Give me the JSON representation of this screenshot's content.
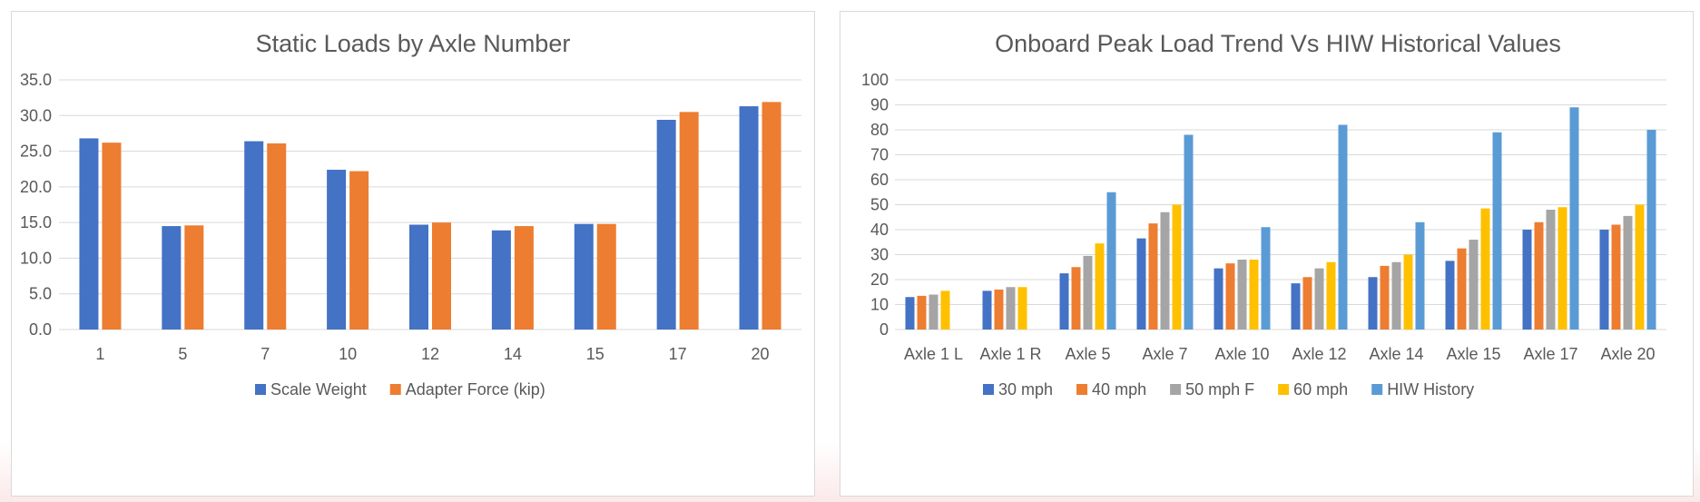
{
  "chart_data": [
    {
      "type": "bar",
      "title": "Static Loads by Axle Number",
      "categories": [
        "1",
        "5",
        "7",
        "10",
        "12",
        "14",
        "15",
        "17",
        "20"
      ],
      "ylim": [
        0,
        35
      ],
      "ytick_step": 5,
      "ytick_labels": [
        "0.0",
        "5.0",
        "10.0",
        "15.0",
        "20.0",
        "25.0",
        "30.0",
        "35.0"
      ],
      "xlabel": "",
      "ylabel": "",
      "grid": true,
      "legend_position": "bottom",
      "series": [
        {
          "name": "Scale Weight",
          "color": "#4472C4",
          "values": [
            26.8,
            14.5,
            26.4,
            22.4,
            14.7,
            13.9,
            14.8,
            29.4,
            31.3
          ]
        },
        {
          "name": "Adapter Force (kip)",
          "color": "#ED7D31",
          "values": [
            26.2,
            14.6,
            26.1,
            22.2,
            15.0,
            14.5,
            14.8,
            30.5,
            31.9
          ]
        }
      ]
    },
    {
      "type": "bar",
      "title": "Onboard Peak Load Trend Vs HIW Historical Values",
      "categories": [
        "Axle 1 L",
        "Axle 1 R",
        "Axle 5",
        "Axle 7",
        "Axle 10",
        "Axle 12",
        "Axle 14",
        "Axle 15",
        "Axle 17",
        "Axle 20"
      ],
      "ylim": [
        0,
        100
      ],
      "ytick_step": 10,
      "ytick_labels": [
        "0",
        "10",
        "20",
        "30",
        "40",
        "50",
        "60",
        "70",
        "80",
        "90",
        "100"
      ],
      "xlabel": "",
      "ylabel": "",
      "grid": true,
      "legend_position": "bottom",
      "series": [
        {
          "name": "30 mph",
          "color": "#4472C4",
          "values": [
            13,
            15.5,
            22.5,
            36.5,
            24.5,
            18.5,
            21,
            27.5,
            40,
            40
          ]
        },
        {
          "name": "40 mph",
          "color": "#ED7D31",
          "values": [
            13.5,
            16,
            25,
            42.5,
            26.5,
            21,
            25.5,
            32.5,
            43,
            42
          ]
        },
        {
          "name": "50 mph F",
          "color": "#A5A5A5",
          "values": [
            14,
            17,
            29.5,
            47,
            28,
            24.5,
            27,
            36,
            48,
            45.5
          ]
        },
        {
          "name": "60 mph",
          "color": "#FFC000",
          "values": [
            15.5,
            17,
            34.5,
            50,
            28,
            27,
            30,
            48.5,
            49,
            50
          ]
        },
        {
          "name": "HIW History",
          "color": "#5B9BD5",
          "values": [
            null,
            null,
            55,
            78,
            41,
            82,
            43,
            79,
            89,
            80
          ]
        }
      ]
    }
  ]
}
